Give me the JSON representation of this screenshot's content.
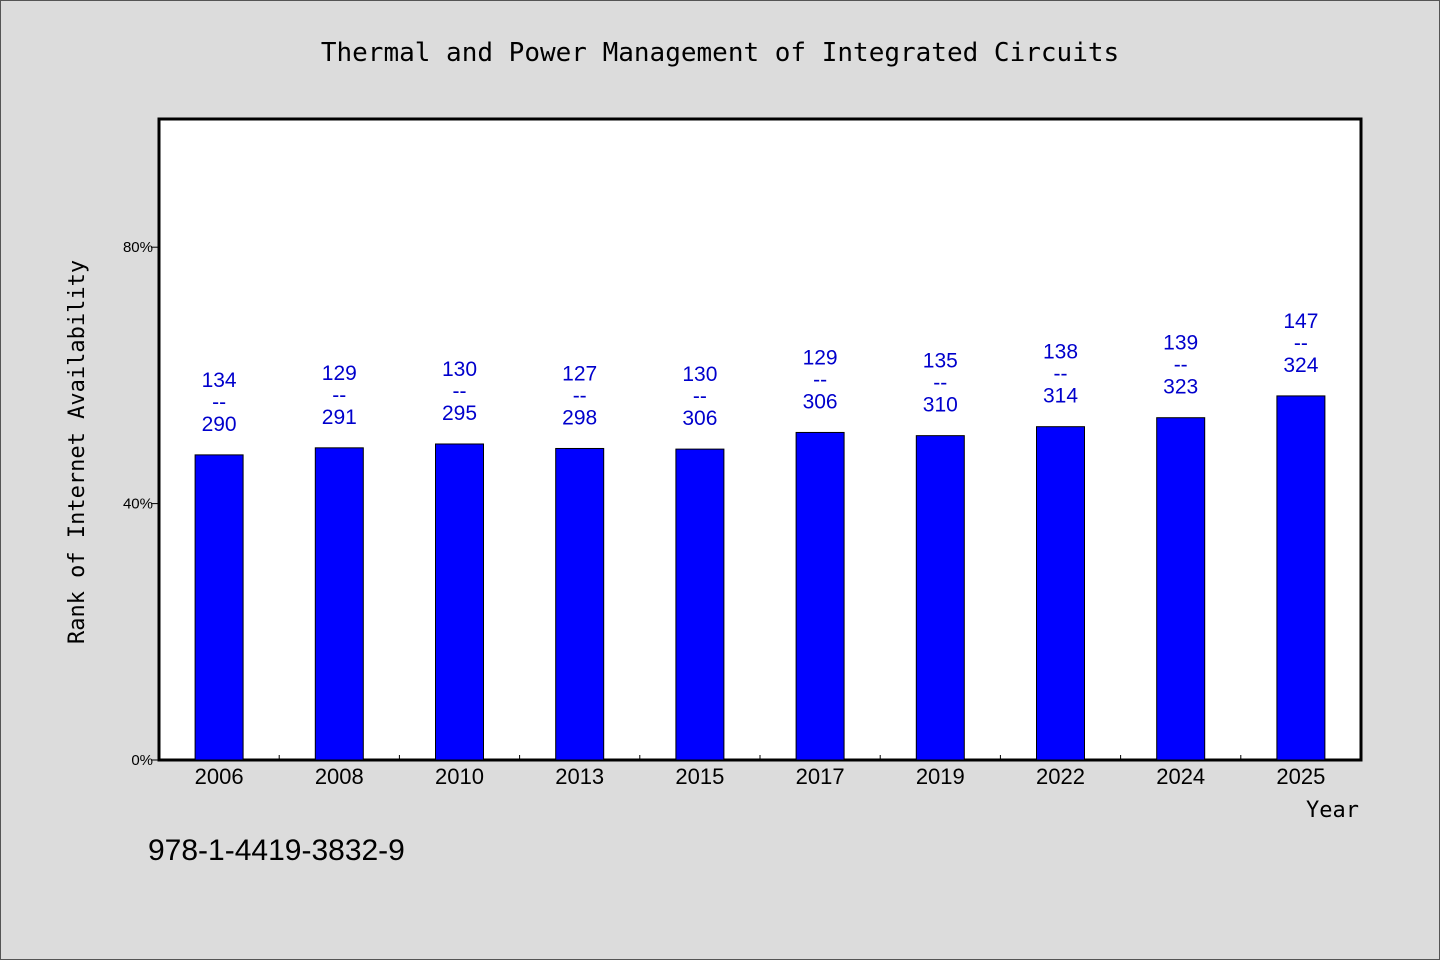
{
  "colors": {
    "background": "#dcdcdc",
    "plot_background": "#ffffff",
    "bar": "#0000ff",
    "data_label": "#0000cc"
  },
  "footer": {
    "isbn": "978-1-4419-3832-9"
  },
  "chart_data": {
    "type": "bar",
    "title": "Thermal and Power Management of Integrated Circuits",
    "xlabel": "Year",
    "ylabel": "Rank of Internet Availability",
    "categories": [
      "2006",
      "2008",
      "2010",
      "2013",
      "2015",
      "2017",
      "2019",
      "2022",
      "2024",
      "2025"
    ],
    "values": [
      47.6,
      48.7,
      49.3,
      48.6,
      48.5,
      51.1,
      50.6,
      52.0,
      53.4,
      56.8
    ],
    "labels_top": [
      "134",
      "129",
      "130",
      "127",
      "130",
      "129",
      "135",
      "138",
      "139",
      "147"
    ],
    "labels_sep": "--",
    "labels_bottom": [
      "290",
      "291",
      "295",
      "298",
      "306",
      "306",
      "310",
      "314",
      "323",
      "324"
    ],
    "yticks": [
      0,
      40,
      80
    ],
    "ytick_labels": [
      "0%",
      "40%",
      "80%"
    ],
    "ylim": [
      0,
      100
    ],
    "grid": false,
    "legend": "none"
  }
}
